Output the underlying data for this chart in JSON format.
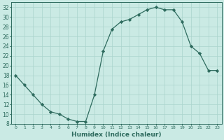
{
  "x": [
    0,
    1,
    2,
    3,
    4,
    5,
    6,
    7,
    8,
    9,
    10,
    11,
    12,
    13,
    14,
    15,
    16,
    17,
    18,
    19,
    20,
    21,
    22,
    23
  ],
  "y": [
    18,
    16,
    14,
    12,
    10.5,
    10,
    9,
    8.5,
    8.5,
    14,
    23,
    27.5,
    29,
    29.5,
    30.5,
    31.5,
    32,
    31.5,
    31.5,
    29,
    24,
    22.5,
    19,
    19
  ],
  "line_color": "#2e6b5e",
  "marker_color": "#2e6b5e",
  "bg_color": "#caeae4",
  "grid_color": "#aad4cc",
  "xlabel": "Humidex (Indice chaleur)",
  "ylim": [
    8,
    33
  ],
  "xlim": [
    -0.5,
    23.5
  ],
  "yticks": [
    8,
    10,
    12,
    14,
    16,
    18,
    20,
    22,
    24,
    26,
    28,
    30,
    32
  ],
  "xticks": [
    0,
    1,
    2,
    3,
    4,
    5,
    6,
    7,
    8,
    9,
    10,
    11,
    12,
    13,
    14,
    15,
    16,
    17,
    18,
    19,
    20,
    21,
    22,
    23
  ],
  "xtick_labels": [
    "0",
    "1",
    "2",
    "3",
    "4",
    "5",
    "6",
    "7",
    "8",
    "9",
    "10",
    "11",
    "12",
    "13",
    "14",
    "15",
    "16",
    "17",
    "18",
    "19",
    "20",
    "21",
    "22",
    "23"
  ]
}
